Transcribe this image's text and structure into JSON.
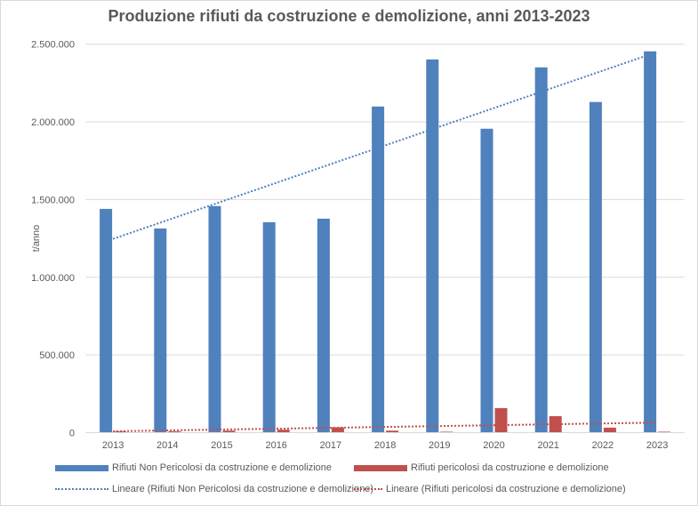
{
  "chart_data": {
    "type": "bar",
    "title": "Produzione rifiuti da costruzione e demolizione, anni 2013-2023",
    "xlabel": "",
    "ylabel": "t/anno",
    "ylim": [
      0,
      2500000
    ],
    "yticks": [
      "0",
      "500.000",
      "1.000.000",
      "1.500.000",
      "2.000.000",
      "2.500.000"
    ],
    "ytick_values": [
      0,
      500000,
      1000000,
      1500000,
      2000000,
      2500000
    ],
    "grid": true,
    "legend_position": "bottom",
    "categories": [
      "2013",
      "2014",
      "2015",
      "2016",
      "2017",
      "2018",
      "2019",
      "2020",
      "2021",
      "2022",
      "2023"
    ],
    "series": [
      {
        "name": "Rifiuti Non Pericolosi da costruzione e demolizione",
        "color": "#4f81bd",
        "values": [
          1440000,
          1314000,
          1458000,
          1354000,
          1377000,
          2099000,
          2402000,
          1956000,
          2351000,
          2128000,
          2454000
        ]
      },
      {
        "name": "Rifiuti pericolosi da costruzione e demolizione",
        "color": "#c0504d",
        "values": [
          8000,
          8000,
          13000,
          19000,
          34000,
          13000,
          6000,
          158000,
          106000,
          32000,
          6000
        ]
      }
    ],
    "trendlines": [
      {
        "name": "Lineare (Rifiuti Non Pericolosi da costruzione e demolizione)",
        "type": "linear",
        "series": 0,
        "color": "#4f81bd"
      },
      {
        "name": "Lineare (Rifiuti pericolosi da costruzione e demolizione)",
        "type": "linear",
        "series": 1,
        "color": "#c0504d"
      }
    ]
  }
}
